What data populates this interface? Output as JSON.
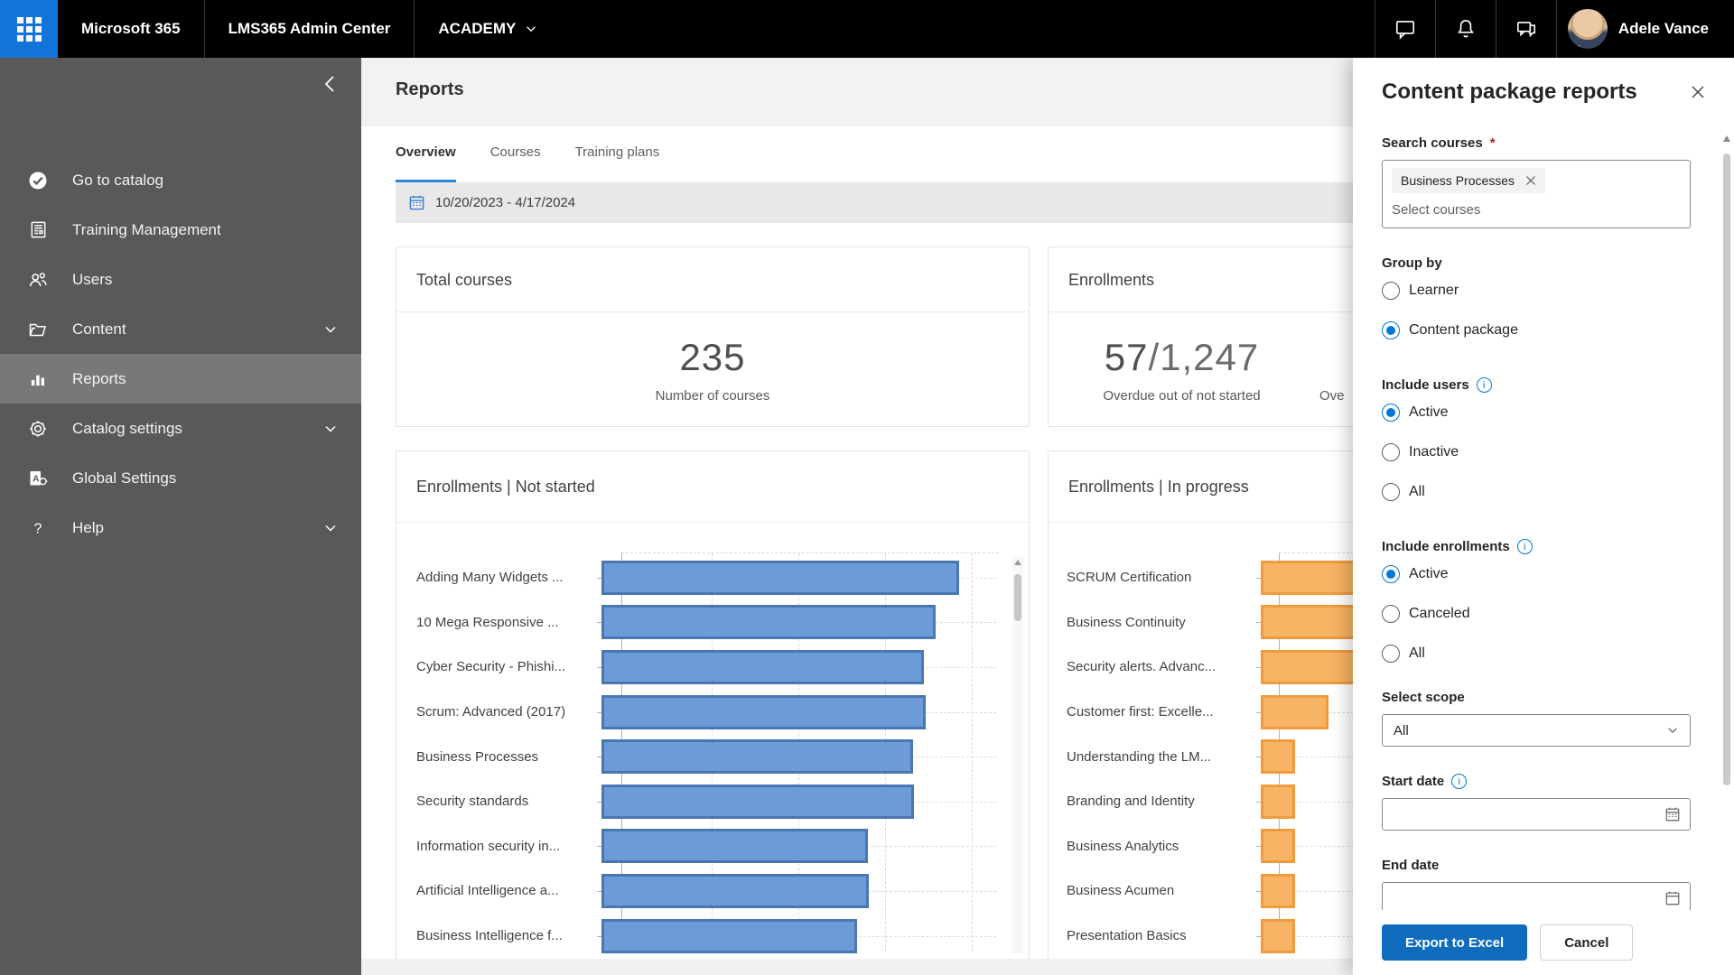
{
  "topbar": {
    "product": "Microsoft 365",
    "app": "LMS365 Admin Center",
    "tenant": "ACADEMY",
    "user": "Adele Vance",
    "icons": [
      "chat-icon",
      "bell-icon",
      "feedback-icon"
    ]
  },
  "sidebar": {
    "items": [
      {
        "label": "Go to catalog",
        "icon": "catalog-check-icon",
        "chevron": false,
        "selected": false
      },
      {
        "label": "Training Management",
        "icon": "training-doc-icon",
        "chevron": false,
        "selected": false
      },
      {
        "label": "Users",
        "icon": "users-icon",
        "chevron": false,
        "selected": false
      },
      {
        "label": "Content",
        "icon": "folder-icon",
        "chevron": true,
        "selected": false
      },
      {
        "label": "Reports",
        "icon": "bar-chart-icon",
        "chevron": false,
        "selected": true
      },
      {
        "label": "Catalog settings",
        "icon": "gear-icon",
        "chevron": true,
        "selected": false
      },
      {
        "label": "Global Settings",
        "icon": "global-settings-icon",
        "chevron": false,
        "selected": false
      },
      {
        "label": "Help",
        "icon": "help-icon",
        "chevron": true,
        "selected": false
      }
    ]
  },
  "main": {
    "page_title": "Reports",
    "tabs": [
      {
        "label": "Overview",
        "active": true
      },
      {
        "label": "Courses",
        "active": false
      },
      {
        "label": "Training plans",
        "active": false
      }
    ],
    "date_range": "10/20/2023 - 4/17/2024",
    "cards": {
      "total_courses": {
        "title": "Total courses",
        "value": "235",
        "caption": "Number of courses"
      },
      "enrollments": {
        "title": "Enrollments",
        "value": "57",
        "value_total": "/1,247",
        "caption": "Overdue out of not started",
        "second_caption_visible": "Ove"
      }
    }
  },
  "chart_data": [
    {
      "type": "bar",
      "orientation": "horizontal",
      "title": "Enrollments | Not started",
      "categories": [
        "Adding Many Widgets ...",
        "10 Mega Responsive ...",
        "Cyber Security - Phishi...",
        "Scrum: Advanced (2017)",
        "Business Processes",
        "Security standards",
        "Information security in...",
        "Artificial Intelligence a...",
        "Business Intelligence f..."
      ],
      "bar_length_pct": [
        90.7,
        84.6,
        81.8,
        82.2,
        78.9,
        79.1,
        67.5,
        67.7,
        64.7
      ],
      "x_axis": {
        "tick_labels_visible": false,
        "gridlines": "dashed",
        "gridline_pct": [
          23.7,
          46.8,
          69.9,
          92.9
        ]
      },
      "bar_fill": "#6b9cd6",
      "bar_stroke": "#4a77b2",
      "scrollable": true
    },
    {
      "type": "bar",
      "orientation": "horizontal",
      "title": "Enrollments | In progress",
      "categories": [
        "SCRUM Certification",
        "Business Continuity",
        "Security alerts. Advanc...",
        "Customer first: Excelle...",
        "Understanding the LM...",
        "Branding and Identity",
        "Business Analytics",
        "Business Acumen",
        "Presentation Basics"
      ],
      "bar_length_pct": [
        30,
        28,
        26,
        18,
        9.1,
        9.1,
        9.1,
        9.1,
        9.1
      ],
      "x_axis": {
        "tick_labels_visible": false,
        "gridlines": "dashed",
        "gridline_pct": [
          23.7,
          46.8,
          69.9,
          92.9
        ]
      },
      "bar_fill": "#f8b465",
      "bar_stroke": "#ef9b3e",
      "clipped_by_panel": true,
      "truncated_bar_indexes": [
        0,
        1,
        2
      ]
    }
  ],
  "panel": {
    "title": "Content package reports",
    "search_courses": {
      "label": "Search courses",
      "required_mark": "*",
      "chips": [
        "Business Processes"
      ],
      "placeholder": "Select courses"
    },
    "group_by": {
      "label": "Group by",
      "options": [
        {
          "label": "Learner",
          "selected": false
        },
        {
          "label": "Content package",
          "selected": true
        }
      ]
    },
    "include_users": {
      "label": "Include users",
      "has_info": true,
      "options": [
        {
          "label": "Active",
          "selected": true
        },
        {
          "label": "Inactive",
          "selected": false
        },
        {
          "label": "All",
          "selected": false
        }
      ]
    },
    "include_enrollments": {
      "label": "Include enrollments",
      "has_info": true,
      "options": [
        {
          "label": "Active",
          "selected": true
        },
        {
          "label": "Canceled",
          "selected": false
        },
        {
          "label": "All",
          "selected": false
        }
      ]
    },
    "select_scope": {
      "label": "Select scope",
      "value": "All"
    },
    "start_date": {
      "label": "Start date",
      "has_info": true,
      "value": ""
    },
    "end_date": {
      "label": "End date",
      "value": ""
    },
    "actions": {
      "export": "Export to Excel",
      "cancel": "Cancel"
    }
  },
  "colors": {
    "accent_blue": "#0078d4",
    "primary_button": "#0f6cbd",
    "tab_underline": "#2b88d8",
    "topbar_waffle": "#1273d8",
    "sidebar_bg": "#595959",
    "sidebar_selected": "#787878",
    "required_red": "#a4262c"
  }
}
